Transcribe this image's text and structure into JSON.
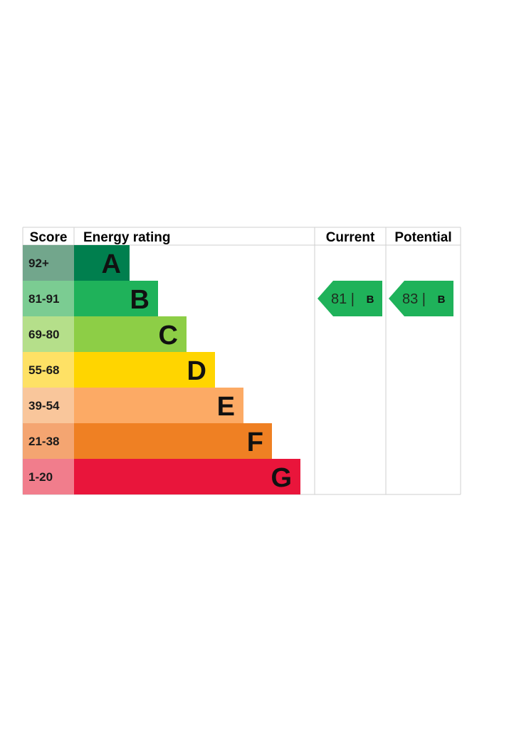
{
  "chart_data": {
    "type": "bar",
    "headers": {
      "score": "Score",
      "energy_rating": "Energy rating",
      "current": "Current",
      "potential": "Potential"
    },
    "bands": [
      {
        "letter": "A",
        "range": "92+",
        "bar_color": "#007f4e",
        "score_color": "#72a68c"
      },
      {
        "letter": "B",
        "range": "81-91",
        "bar_color": "#1fb25a",
        "score_color": "#7bcc92"
      },
      {
        "letter": "C",
        "range": "69-80",
        "bar_color": "#8dce46",
        "score_color": "#b5df8a"
      },
      {
        "letter": "D",
        "range": "55-68",
        "bar_color": "#ffd500",
        "score_color": "#fee165"
      },
      {
        "letter": "E",
        "range": "39-54",
        "bar_color": "#fcaa65",
        "score_color": "#f9c69b"
      },
      {
        "letter": "F",
        "range": "21-38",
        "bar_color": "#ef8023",
        "score_color": "#f4a571"
      },
      {
        "letter": "G",
        "range": "1-20",
        "bar_color": "#e9153b",
        "score_color": "#f17d8c"
      }
    ],
    "current": {
      "value": 81,
      "band": "B",
      "label": "81 |",
      "color": "#1fb25a"
    },
    "potential": {
      "value": 83,
      "band": "B",
      "label": "83 |",
      "color": "#1fb25a"
    }
  }
}
